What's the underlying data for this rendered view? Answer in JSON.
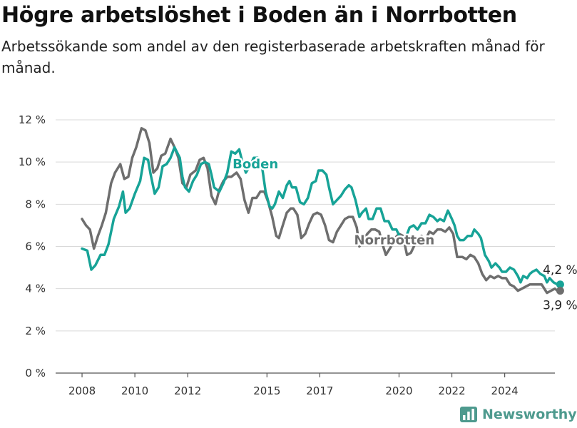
{
  "title": "Högre arbetslöshet i Boden än i Norrbotten",
  "subtitle": "Arbetssökande som andel av den registerbaserade arbetskraften månad för månad.",
  "brand": {
    "name": "Newsworthy",
    "icon": "bar-chart-logo-icon"
  },
  "colors": {
    "boden": "#17a397",
    "norrbotten": "#6e6e6e",
    "brand": "#4e9a8e",
    "grid": "#d9d9d9"
  },
  "chart_data": {
    "type": "line",
    "title": "Högre arbetslöshet i Boden än i Norrbotten",
    "subtitle": "Arbetssökande som andel av den registerbaserade arbetskraften månad för månad.",
    "xlabel": "",
    "ylabel": "",
    "xlim": [
      2007.0,
      2025.9
    ],
    "ylim": [
      0,
      12
    ],
    "grid": true,
    "yticks": [
      0,
      2,
      4,
      6,
      8,
      10,
      12
    ],
    "ytick_labels": [
      "0 %",
      "2 %",
      "4 %",
      "6 %",
      "8 %",
      "10 %",
      "12 %"
    ],
    "xticks": [
      2008,
      2010,
      2012,
      2015,
      2017,
      2020,
      2022,
      2024
    ],
    "xtick_labels": [
      "2008",
      "2010",
      "2012",
      "2015",
      "2017",
      "2020",
      "2022",
      "2024"
    ],
    "series": [
      {
        "name": "Boden",
        "color": "#17a397",
        "end_label": "4,2 %",
        "points": [
          [
            2008.0,
            5.9
          ],
          [
            2008.2,
            5.8
          ],
          [
            2008.35,
            4.9
          ],
          [
            2008.5,
            5.1
          ],
          [
            2008.7,
            5.6
          ],
          [
            2008.85,
            5.6
          ],
          [
            2009.0,
            6.1
          ],
          [
            2009.2,
            7.3
          ],
          [
            2009.4,
            7.9
          ],
          [
            2009.55,
            8.6
          ],
          [
            2009.65,
            7.6
          ],
          [
            2009.8,
            7.8
          ],
          [
            2010.0,
            8.5
          ],
          [
            2010.2,
            9.1
          ],
          [
            2010.35,
            10.2
          ],
          [
            2010.5,
            10.1
          ],
          [
            2010.6,
            9.4
          ],
          [
            2010.75,
            8.5
          ],
          [
            2010.9,
            8.8
          ],
          [
            2011.05,
            9.8
          ],
          [
            2011.2,
            9.9
          ],
          [
            2011.35,
            10.2
          ],
          [
            2011.5,
            10.7
          ],
          [
            2011.7,
            10.2
          ],
          [
            2011.8,
            9.3
          ],
          [
            2011.9,
            8.8
          ],
          [
            2012.05,
            8.6
          ],
          [
            2012.2,
            9.1
          ],
          [
            2012.35,
            9.4
          ],
          [
            2012.5,
            9.9
          ],
          [
            2012.65,
            10.0
          ],
          [
            2012.8,
            9.9
          ],
          [
            2012.9,
            9.4
          ],
          [
            2013.0,
            8.8
          ],
          [
            2013.2,
            8.6
          ],
          [
            2013.35,
            9.0
          ],
          [
            2013.5,
            9.5
          ],
          [
            2013.65,
            10.5
          ],
          [
            2013.8,
            10.4
          ],
          [
            2013.95,
            10.6
          ],
          [
            2014.05,
            10.1
          ],
          [
            2014.2,
            9.5
          ],
          [
            2014.35,
            9.8
          ],
          [
            2014.5,
            10.2
          ],
          [
            2014.65,
            10.2
          ],
          [
            2014.8,
            9.9
          ],
          [
            2014.95,
            8.6
          ],
          [
            2015.1,
            7.9
          ],
          [
            2015.2,
            7.8
          ],
          [
            2015.3,
            8.0
          ],
          [
            2015.45,
            8.6
          ],
          [
            2015.6,
            8.3
          ],
          [
            2015.75,
            8.9
          ],
          [
            2015.85,
            9.1
          ],
          [
            2015.95,
            8.8
          ],
          [
            2016.1,
            8.8
          ],
          [
            2016.25,
            8.1
          ],
          [
            2016.4,
            8.0
          ],
          [
            2016.55,
            8.3
          ],
          [
            2016.7,
            9.0
          ],
          [
            2016.85,
            9.1
          ],
          [
            2016.95,
            9.6
          ],
          [
            2017.1,
            9.6
          ],
          [
            2017.25,
            9.4
          ],
          [
            2017.35,
            8.8
          ],
          [
            2017.5,
            8.0
          ],
          [
            2017.65,
            8.2
          ],
          [
            2017.8,
            8.4
          ],
          [
            2017.95,
            8.7
          ],
          [
            2018.1,
            8.9
          ],
          [
            2018.2,
            8.8
          ],
          [
            2018.35,
            8.2
          ],
          [
            2018.5,
            7.4
          ],
          [
            2018.6,
            7.6
          ],
          [
            2018.75,
            7.8
          ],
          [
            2018.85,
            7.3
          ],
          [
            2019.0,
            7.3
          ],
          [
            2019.15,
            7.8
          ],
          [
            2019.3,
            7.8
          ],
          [
            2019.45,
            7.2
          ],
          [
            2019.6,
            7.2
          ],
          [
            2019.75,
            6.8
          ],
          [
            2019.9,
            6.8
          ],
          [
            2020.05,
            6.4
          ],
          [
            2020.25,
            6.4
          ],
          [
            2020.4,
            6.9
          ],
          [
            2020.55,
            7.0
          ],
          [
            2020.7,
            6.8
          ],
          [
            2020.85,
            7.1
          ],
          [
            2021.0,
            7.1
          ],
          [
            2021.15,
            7.5
          ],
          [
            2021.3,
            7.4
          ],
          [
            2021.45,
            7.2
          ],
          [
            2021.55,
            7.3
          ],
          [
            2021.7,
            7.2
          ],
          [
            2021.85,
            7.7
          ],
          [
            2022.0,
            7.3
          ],
          [
            2022.1,
            7.0
          ],
          [
            2022.2,
            6.5
          ],
          [
            2022.3,
            6.3
          ],
          [
            2022.45,
            6.3
          ],
          [
            2022.6,
            6.5
          ],
          [
            2022.75,
            6.5
          ],
          [
            2022.85,
            6.8
          ],
          [
            2023.0,
            6.6
          ],
          [
            2023.1,
            6.4
          ],
          [
            2023.25,
            5.6
          ],
          [
            2023.4,
            5.3
          ],
          [
            2023.5,
            5.0
          ],
          [
            2023.65,
            5.2
          ],
          [
            2023.8,
            5.0
          ],
          [
            2023.9,
            4.8
          ],
          [
            2024.05,
            4.8
          ],
          [
            2024.2,
            5.0
          ],
          [
            2024.35,
            4.9
          ],
          [
            2024.5,
            4.6
          ],
          [
            2024.6,
            4.3
          ],
          [
            2024.7,
            4.6
          ],
          [
            2024.85,
            4.5
          ],
          [
            2024.95,
            4.7
          ],
          [
            2025.05,
            4.8
          ],
          [
            2025.2,
            4.9
          ],
          [
            2025.35,
            4.7
          ],
          [
            2025.5,
            4.6
          ],
          [
            2025.6,
            4.3
          ],
          [
            2025.7,
            4.5
          ],
          [
            2025.85,
            4.3
          ],
          [
            2026.0,
            4.2
          ],
          [
            2026.1,
            4.2
          ]
        ]
      },
      {
        "name": "Norrbotten",
        "color": "#6e6e6e",
        "end_label": "3,9 %",
        "points": [
          [
            2008.0,
            7.3
          ],
          [
            2008.15,
            7.0
          ],
          [
            2008.3,
            6.8
          ],
          [
            2008.45,
            5.9
          ],
          [
            2008.6,
            6.5
          ],
          [
            2008.75,
            7.0
          ],
          [
            2008.9,
            7.6
          ],
          [
            2009.1,
            9.0
          ],
          [
            2009.25,
            9.5
          ],
          [
            2009.45,
            9.9
          ],
          [
            2009.6,
            9.2
          ],
          [
            2009.75,
            9.3
          ],
          [
            2009.9,
            10.2
          ],
          [
            2010.05,
            10.7
          ],
          [
            2010.25,
            11.6
          ],
          [
            2010.4,
            11.5
          ],
          [
            2010.55,
            10.9
          ],
          [
            2010.7,
            9.5
          ],
          [
            2010.85,
            9.7
          ],
          [
            2011.0,
            10.3
          ],
          [
            2011.15,
            10.4
          ],
          [
            2011.35,
            11.1
          ],
          [
            2011.5,
            10.7
          ],
          [
            2011.65,
            10.2
          ],
          [
            2011.8,
            9.0
          ],
          [
            2011.95,
            8.8
          ],
          [
            2012.1,
            9.4
          ],
          [
            2012.3,
            9.6
          ],
          [
            2012.45,
            10.1
          ],
          [
            2012.6,
            10.2
          ],
          [
            2012.75,
            9.7
          ],
          [
            2012.9,
            8.4
          ],
          [
            2013.05,
            8.0
          ],
          [
            2013.2,
            8.7
          ],
          [
            2013.35,
            9.1
          ],
          [
            2013.5,
            9.3
          ],
          [
            2013.65,
            9.3
          ],
          [
            2013.85,
            9.5
          ],
          [
            2014.0,
            9.2
          ],
          [
            2014.15,
            8.2
          ],
          [
            2014.3,
            7.6
          ],
          [
            2014.45,
            8.3
          ],
          [
            2014.6,
            8.3
          ],
          [
            2014.75,
            8.6
          ],
          [
            2014.9,
            8.6
          ],
          [
            2015.05,
            8.1
          ],
          [
            2015.2,
            7.4
          ],
          [
            2015.35,
            6.5
          ],
          [
            2015.45,
            6.4
          ],
          [
            2015.6,
            7.0
          ],
          [
            2015.75,
            7.6
          ],
          [
            2015.9,
            7.8
          ],
          [
            2016.0,
            7.8
          ],
          [
            2016.15,
            7.5
          ],
          [
            2016.3,
            6.4
          ],
          [
            2016.45,
            6.6
          ],
          [
            2016.6,
            7.1
          ],
          [
            2016.75,
            7.5
          ],
          [
            2016.9,
            7.6
          ],
          [
            2017.05,
            7.5
          ],
          [
            2017.2,
            7.0
          ],
          [
            2017.35,
            6.3
          ],
          [
            2017.5,
            6.2
          ],
          [
            2017.65,
            6.7
          ],
          [
            2017.8,
            7.0
          ],
          [
            2017.95,
            7.3
          ],
          [
            2018.1,
            7.4
          ],
          [
            2018.25,
            7.4
          ],
          [
            2018.4,
            6.9
          ],
          [
            2018.5,
            6.0
          ],
          [
            2018.65,
            6.3
          ],
          [
            2018.8,
            6.6
          ],
          [
            2018.95,
            6.8
          ],
          [
            2019.1,
            6.8
          ],
          [
            2019.25,
            6.7
          ],
          [
            2019.4,
            6.0
          ],
          [
            2019.5,
            5.6
          ],
          [
            2019.7,
            6.0
          ],
          [
            2019.85,
            6.4
          ],
          [
            2020.0,
            6.6
          ],
          [
            2020.15,
            6.5
          ],
          [
            2020.3,
            5.6
          ],
          [
            2020.45,
            5.7
          ],
          [
            2020.6,
            6.1
          ],
          [
            2020.75,
            6.3
          ],
          [
            2020.85,
            6.5
          ],
          [
            2021.0,
            6.3
          ],
          [
            2021.15,
            6.7
          ],
          [
            2021.3,
            6.6
          ],
          [
            2021.45,
            6.8
          ],
          [
            2021.6,
            6.8
          ],
          [
            2021.75,
            6.7
          ],
          [
            2021.9,
            6.9
          ],
          [
            2022.05,
            6.6
          ],
          [
            2022.2,
            5.5
          ],
          [
            2022.4,
            5.5
          ],
          [
            2022.55,
            5.4
          ],
          [
            2022.7,
            5.6
          ],
          [
            2022.85,
            5.5
          ],
          [
            2023.0,
            5.2
          ],
          [
            2023.15,
            4.7
          ],
          [
            2023.3,
            4.4
          ],
          [
            2023.45,
            4.6
          ],
          [
            2023.6,
            4.5
          ],
          [
            2023.75,
            4.6
          ],
          [
            2023.9,
            4.5
          ],
          [
            2024.05,
            4.5
          ],
          [
            2024.2,
            4.2
          ],
          [
            2024.35,
            4.1
          ],
          [
            2024.5,
            3.9
          ],
          [
            2024.65,
            4.0
          ],
          [
            2024.8,
            4.1
          ],
          [
            2024.95,
            4.2
          ],
          [
            2025.1,
            4.2
          ],
          [
            2025.25,
            4.2
          ],
          [
            2025.4,
            4.2
          ],
          [
            2025.5,
            4.0
          ],
          [
            2025.6,
            3.8
          ],
          [
            2025.75,
            3.9
          ],
          [
            2025.9,
            4.0
          ],
          [
            2026.0,
            3.9
          ],
          [
            2026.1,
            3.9
          ]
        ]
      }
    ],
    "annotations": [
      {
        "series": "Boden",
        "text": "Boden",
        "x": 2013.7,
        "y": 9.7
      },
      {
        "series": "Norrbotten",
        "text": "Norrbotten",
        "x": 2018.3,
        "y": 6.1
      }
    ]
  }
}
